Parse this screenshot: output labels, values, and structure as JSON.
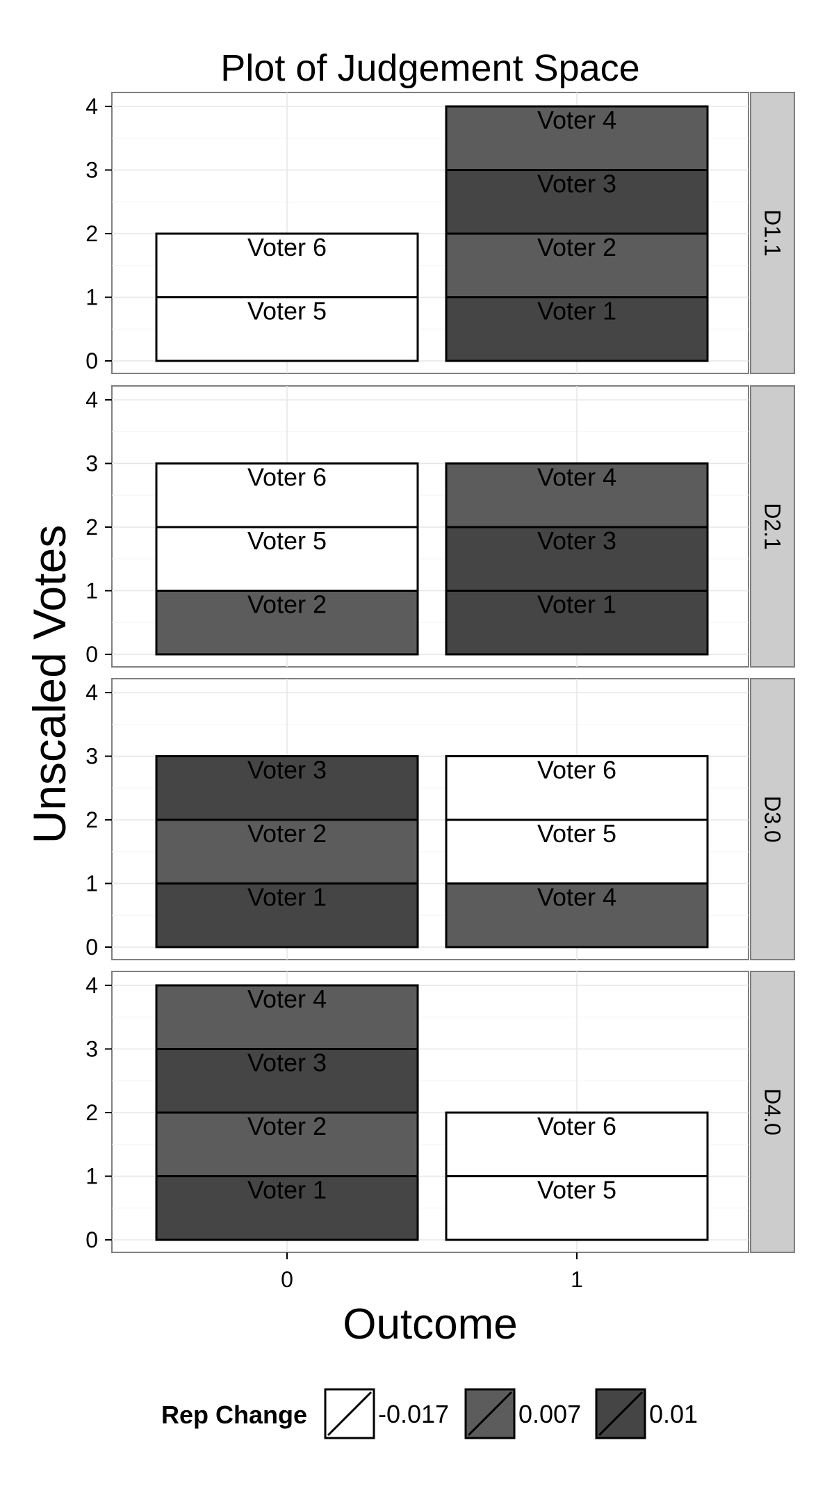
{
  "chart_data": {
    "type": "bar",
    "title": "Plot of Judgement Space",
    "xlabel": "Outcome",
    "ylabel": "Unscaled Votes",
    "x_categories": [
      "0",
      "1"
    ],
    "y_ticks": [
      0,
      1,
      2,
      3,
      4
    ],
    "ylim": [
      0,
      4
    ],
    "grid": true,
    "stacked": true,
    "legend": {
      "title": "Rep Change",
      "position": "bottom",
      "entries": [
        {
          "label": "-0.017",
          "color": "#ffffff"
        },
        {
          "label": "0.007",
          "color": "#5c5c5c"
        },
        {
          "label": "0.01",
          "color": "#454545"
        }
      ]
    },
    "panels": [
      {
        "facet": "D1.1",
        "stacks": [
          {
            "x": "0",
            "segments": [
              {
                "voter": "Voter 5",
                "votes": 1,
                "rep_change": "-0.017"
              },
              {
                "voter": "Voter 6",
                "votes": 1,
                "rep_change": "-0.017"
              }
            ]
          },
          {
            "x": "1",
            "segments": [
              {
                "voter": "Voter 1",
                "votes": 1,
                "rep_change": "0.01"
              },
              {
                "voter": "Voter 2",
                "votes": 1,
                "rep_change": "0.007"
              },
              {
                "voter": "Voter 3",
                "votes": 1,
                "rep_change": "0.01"
              },
              {
                "voter": "Voter 4",
                "votes": 1,
                "rep_change": "0.007"
              }
            ]
          }
        ]
      },
      {
        "facet": "D2.1",
        "stacks": [
          {
            "x": "0",
            "segments": [
              {
                "voter": "Voter 2",
                "votes": 1,
                "rep_change": "0.007"
              },
              {
                "voter": "Voter 5",
                "votes": 1,
                "rep_change": "-0.017"
              },
              {
                "voter": "Voter 6",
                "votes": 1,
                "rep_change": "-0.017"
              }
            ]
          },
          {
            "x": "1",
            "segments": [
              {
                "voter": "Voter 1",
                "votes": 1,
                "rep_change": "0.01"
              },
              {
                "voter": "Voter 3",
                "votes": 1,
                "rep_change": "0.01"
              },
              {
                "voter": "Voter 4",
                "votes": 1,
                "rep_change": "0.007"
              }
            ]
          }
        ]
      },
      {
        "facet": "D3.0",
        "stacks": [
          {
            "x": "0",
            "segments": [
              {
                "voter": "Voter 1",
                "votes": 1,
                "rep_change": "0.01"
              },
              {
                "voter": "Voter 2",
                "votes": 1,
                "rep_change": "0.007"
              },
              {
                "voter": "Voter 3",
                "votes": 1,
                "rep_change": "0.01"
              }
            ]
          },
          {
            "x": "1",
            "segments": [
              {
                "voter": "Voter 4",
                "votes": 1,
                "rep_change": "0.007"
              },
              {
                "voter": "Voter 5",
                "votes": 1,
                "rep_change": "-0.017"
              },
              {
                "voter": "Voter 6",
                "votes": 1,
                "rep_change": "-0.017"
              }
            ]
          }
        ]
      },
      {
        "facet": "D4.0",
        "stacks": [
          {
            "x": "0",
            "segments": [
              {
                "voter": "Voter 1",
                "votes": 1,
                "rep_change": "0.01"
              },
              {
                "voter": "Voter 2",
                "votes": 1,
                "rep_change": "0.007"
              },
              {
                "voter": "Voter 3",
                "votes": 1,
                "rep_change": "0.01"
              },
              {
                "voter": "Voter 4",
                "votes": 1,
                "rep_change": "0.007"
              }
            ]
          },
          {
            "x": "1",
            "segments": [
              {
                "voter": "Voter 5",
                "votes": 1,
                "rep_change": "-0.017"
              },
              {
                "voter": "Voter 6",
                "votes": 1,
                "rep_change": "-0.017"
              }
            ]
          }
        ]
      }
    ]
  }
}
